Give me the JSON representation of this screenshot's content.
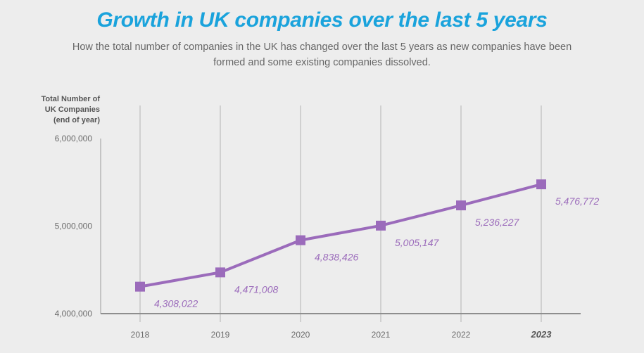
{
  "header": {
    "title": "Growth in UK companies over the last 5 years",
    "subtitle": "How the total number of companies in the UK has changed over the last 5 years as new companies have been formed and some existing companies dissolved."
  },
  "colors": {
    "title": "#1aa3dc",
    "series": "#9b6bbb",
    "background": "#ededed",
    "grid": "#bdbdbd",
    "axis": "#8e8e8e"
  },
  "chart_data": {
    "type": "line",
    "title": "Growth in UK companies over the last 5 years",
    "subtitle": "How the total number of companies in the UK has changed over the last 5 years as new companies have been formed and some existing companies dissolved.",
    "xlabel": "",
    "ylabel_lines": [
      "Total Number of",
      "UK Companies",
      "(end of year)"
    ],
    "x": [
      "2018",
      "2019",
      "2020",
      "2021",
      "2022",
      "2023"
    ],
    "highlight_x": "2023",
    "series": [
      {
        "name": "Total Number of UK Companies",
        "values": [
          4308022,
          4471008,
          4838426,
          5005147,
          5236227,
          5476772
        ],
        "labels": [
          "4,308,022",
          "4,471,008",
          "4,838,426",
          "5,005,147",
          "5,236,227",
          "5,476,772"
        ],
        "marker": "square"
      }
    ],
    "ylim": [
      4000000,
      6000000
    ],
    "yticks": [
      4000000,
      5000000,
      6000000
    ],
    "ytick_labels": [
      "4,000,000",
      "5,000,000",
      "6,000,000"
    ],
    "grid": "vertical",
    "legend": "none"
  }
}
